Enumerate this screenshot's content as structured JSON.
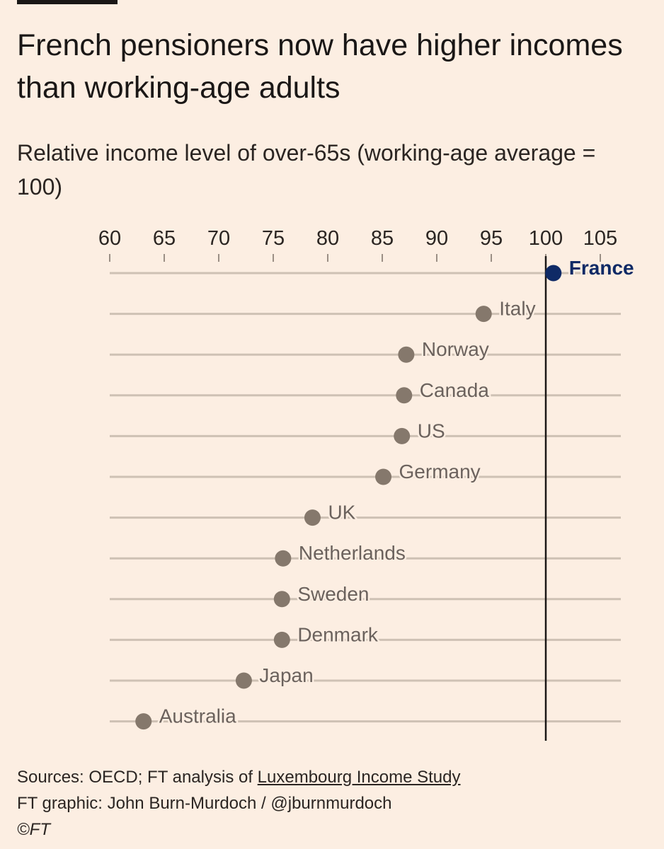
{
  "header": {
    "title": "French pensioners now have higher incomes than working-age adults",
    "subtitle": "Relative income level of over-65s (working-age average = 100)"
  },
  "chart_data": {
    "type": "scatter",
    "subtype": "dot-plot",
    "title": "French pensioners now have higher incomes than working-age adults",
    "subtitle": "Relative income level of over-65s (working-age average = 100)",
    "xlabel": "",
    "ylabel": "",
    "xlim": [
      60,
      107
    ],
    "x_ticks": [
      60,
      65,
      70,
      75,
      80,
      85,
      90,
      95,
      100,
      105
    ],
    "reference_line": 100,
    "highlight": "France",
    "series": [
      {
        "name": "Relative income level of over-65s",
        "points": [
          {
            "label": "France",
            "value": 100.7
          },
          {
            "label": "Italy",
            "value": 94.3
          },
          {
            "label": "Norway",
            "value": 87.2
          },
          {
            "label": "Canada",
            "value": 87.0
          },
          {
            "label": "US",
            "value": 86.8
          },
          {
            "label": "Germany",
            "value": 85.1
          },
          {
            "label": "UK",
            "value": 78.6
          },
          {
            "label": "Netherlands",
            "value": 75.9
          },
          {
            "label": "Sweden",
            "value": 75.8
          },
          {
            "label": "Denmark",
            "value": 75.8
          },
          {
            "label": "Japan",
            "value": 72.3
          },
          {
            "label": "Australia",
            "value": 63.1
          }
        ]
      }
    ],
    "colors": {
      "highlight": "#0F2A66",
      "dot": "#85786C",
      "gridline": "#CEC1B4",
      "tick": "#9B8F85",
      "reference": "#1A1716"
    }
  },
  "footer": {
    "sources_prefix": "Sources: OECD; FT analysis of ",
    "sources_link": "Luxembourg Income Study",
    "credit": "FT graphic: John Burn-Murdoch / @jburnmurdoch",
    "copyright": "©FT"
  }
}
